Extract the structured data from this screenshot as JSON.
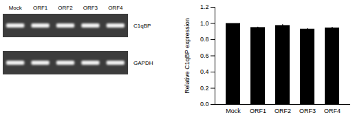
{
  "gel": {
    "lanes": [
      "Mock",
      "ORF1",
      "ORF2",
      "ORF3",
      "ORF4"
    ],
    "rows": [
      "C1qBP",
      "GAPDH"
    ]
  },
  "chart_data": {
    "type": "bar",
    "categories": [
      "Mock",
      "ORF1",
      "ORF2",
      "ORF3",
      "ORF4"
    ],
    "values": [
      1.0,
      0.95,
      0.975,
      0.93,
      0.945
    ],
    "errors": [
      0,
      0.004,
      0.008,
      0.004,
      0.008
    ],
    "color": "#000000",
    "y_label": "Relative C1qBP expression",
    "ylim": [
      0,
      1.2
    ],
    "yticks": [
      {
        "value": 0,
        "label": "0.0"
      },
      0.2,
      0.4,
      0.6,
      0.8,
      {
        "value": 1,
        "label": "1.0"
      },
      1.2
    ],
    "grid": false
  }
}
